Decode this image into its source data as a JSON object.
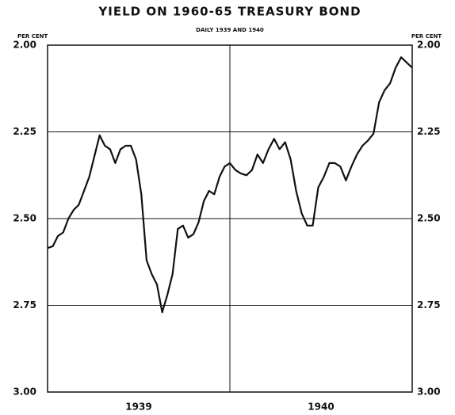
{
  "chart_data": {
    "type": "line",
    "title": "YIELD ON 1960-65 TREASURY BOND",
    "subtitle": "DAILY 1939 AND 1940",
    "y_label": "PER CENT",
    "y2_label": "PER CENT",
    "categories": [
      "1939",
      "1940"
    ],
    "values": [
      [
        2.585,
        2.58,
        2.55,
        2.54,
        2.5,
        2.475,
        2.46,
        2.42,
        2.38,
        2.32,
        2.26,
        2.29,
        2.3,
        2.34,
        2.3,
        2.29,
        2.29,
        2.33,
        2.43,
        2.62,
        2.66,
        2.69,
        2.77,
        2.72,
        2.66,
        2.53,
        2.52,
        2.555,
        2.545,
        2.51,
        2.45,
        2.42,
        2.43,
        2.38,
        2.35
      ],
      [
        2.34,
        2.36,
        2.37,
        2.375,
        2.36,
        2.315,
        2.34,
        2.3,
        2.27,
        2.3,
        2.28,
        2.33,
        2.42,
        2.485,
        2.52,
        2.52,
        2.41,
        2.38,
        2.34,
        2.34,
        2.35,
        2.39,
        2.35,
        2.315,
        2.29,
        2.275,
        2.255,
        2.165,
        2.13,
        2.11,
        2.065,
        2.035,
        2.05,
        2.065
      ]
    ],
    "color": "#111111",
    "ylim": [
      2,
      3
    ],
    "inverted": true,
    "yticks": [
      {
        "value": 2,
        "label": "2.00"
      },
      2.25,
      {
        "value": 2.5,
        "label": "2.50"
      },
      2.75,
      {
        "value": 3,
        "label": "3.00"
      }
    ],
    "y2lim": [
      2,
      3
    ],
    "y2ticks": [
      {
        "value": 2,
        "label": "2.00"
      },
      2.25,
      {
        "value": 2.5,
        "label": "2.50"
      },
      2.75,
      {
        "value": 3,
        "label": "3.00"
      }
    ],
    "grid": true
  }
}
